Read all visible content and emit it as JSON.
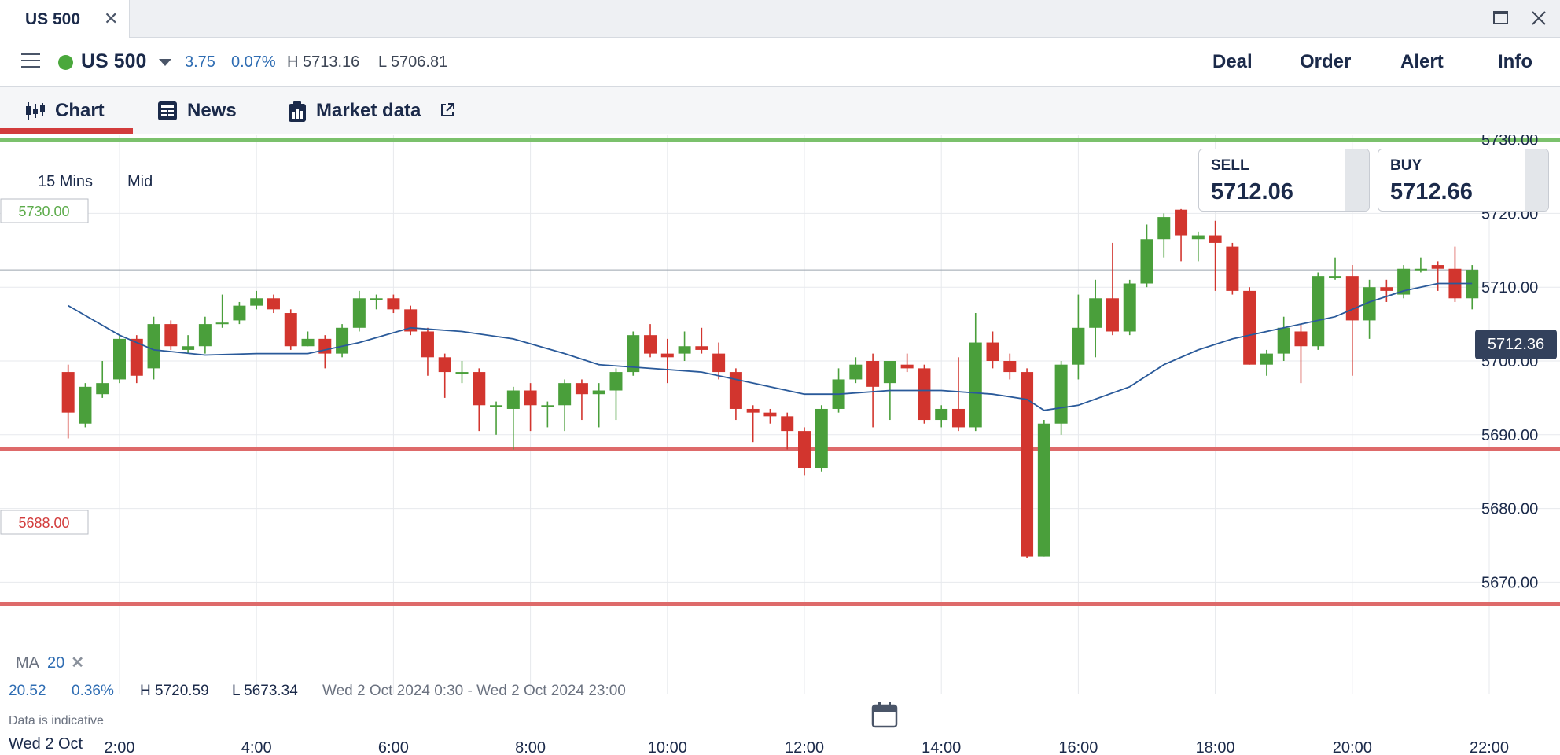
{
  "window": {
    "tab_title": "US 500",
    "close_glyph": "✕",
    "maximize_glyph": "□"
  },
  "header": {
    "instrument": "US 500",
    "status_color": "#4aa83c",
    "change": "3.75",
    "change_pct": "0.07%",
    "high": "H 5713.16",
    "low": "L 5706.81",
    "actions": {
      "deal": "Deal",
      "order": "Order",
      "alert": "Alert",
      "info": "Info"
    }
  },
  "subtabs": {
    "chart": "Chart",
    "news": "News",
    "market_data": "Market data"
  },
  "chart": {
    "interval": "15 Mins",
    "price_type": "Mid",
    "sell_label": "SELL",
    "sell_value": "5712.06",
    "buy_label": "BUY",
    "buy_value": "5712.66",
    "current_price": "5712.36",
    "upper_level": "5730.00",
    "lower_level": "5688.00",
    "bottom_level": "5667.00",
    "ma_label": "MA",
    "ma_period": "20",
    "ma_remove": "✕",
    "stats": {
      "change": "20.52",
      "change_pct": "0.36%",
      "high": "H 5720.59",
      "low": "L 5673.34",
      "range": "Wed 2 Oct 2024 0:30 - Wed 2 Oct 2024 23:00"
    },
    "disclaimer": "Data is indicative",
    "date_label": "Wed 2 Oct",
    "colors": {
      "up": "#4a9f3b",
      "down": "#d2352e",
      "ma_line": "#2a5a9a",
      "upper_level": "#7bc16c",
      "lower_level": "#de6a6a"
    }
  },
  "chart_data": {
    "type": "candlestick",
    "x_axis": {
      "unit": "time",
      "range": [
        "1:15",
        "22:00"
      ],
      "ticks": [
        "2:00",
        "4:00",
        "6:00",
        "8:00",
        "10:00",
        "12:00",
        "14:00",
        "16:00",
        "18:00",
        "20:00",
        "22:00"
      ]
    },
    "y_axis": {
      "range": [
        5664,
        5736
      ],
      "ticks": [
        "5670.00",
        "5680.00",
        "5690.00",
        "5700.00",
        "5710.00",
        "5720.00",
        "5730.00"
      ]
    },
    "grid": true,
    "candles": [
      {
        "t": "1:15",
        "o": 5698.5,
        "h": 5699.5,
        "l": 5689.5,
        "c": 5693.0
      },
      {
        "t": "1:30",
        "o": 5691.5,
        "h": 5697.0,
        "l": 5691.0,
        "c": 5696.5
      },
      {
        "t": "1:45",
        "o": 5695.5,
        "h": 5700.0,
        "l": 5695.0,
        "c": 5697.0
      },
      {
        "t": "2:00",
        "o": 5697.5,
        "h": 5703.5,
        "l": 5697.0,
        "c": 5703.0
      },
      {
        "t": "2:15",
        "o": 5703.0,
        "h": 5703.5,
        "l": 5697.0,
        "c": 5698.0
      },
      {
        "t": "2:30",
        "o": 5699.0,
        "h": 5706.0,
        "l": 5697.5,
        "c": 5705.0
      },
      {
        "t": "2:45",
        "o": 5705.0,
        "h": 5705.5,
        "l": 5701.5,
        "c": 5702.0
      },
      {
        "t": "3:00",
        "o": 5701.5,
        "h": 5703.5,
        "l": 5701.0,
        "c": 5702.0
      },
      {
        "t": "3:15",
        "o": 5702.0,
        "h": 5706.0,
        "l": 5701.0,
        "c": 5705.0
      },
      {
        "t": "3:30",
        "o": 5705.0,
        "h": 5709.0,
        "l": 5704.5,
        "c": 5705.2
      },
      {
        "t": "3:45",
        "o": 5705.5,
        "h": 5708.0,
        "l": 5705.0,
        "c": 5707.5
      },
      {
        "t": "4:00",
        "o": 5707.5,
        "h": 5709.5,
        "l": 5707.0,
        "c": 5708.5
      },
      {
        "t": "4:15",
        "o": 5708.5,
        "h": 5709.0,
        "l": 5706.5,
        "c": 5707.0
      },
      {
        "t": "4:30",
        "o": 5706.5,
        "h": 5707.0,
        "l": 5701.5,
        "c": 5702.0
      },
      {
        "t": "4:45",
        "o": 5702.0,
        "h": 5704.0,
        "l": 5702.0,
        "c": 5703.0
      },
      {
        "t": "5:00",
        "o": 5703.0,
        "h": 5703.5,
        "l": 5699.0,
        "c": 5701.0
      },
      {
        "t": "5:15",
        "o": 5701.0,
        "h": 5705.0,
        "l": 5700.5,
        "c": 5704.5
      },
      {
        "t": "5:30",
        "o": 5704.5,
        "h": 5709.5,
        "l": 5704.0,
        "c": 5708.5
      },
      {
        "t": "5:45",
        "o": 5708.5,
        "h": 5709.0,
        "l": 5707.0,
        "c": 5708.5
      },
      {
        "t": "6:00",
        "o": 5708.5,
        "h": 5709.0,
        "l": 5706.5,
        "c": 5707.0
      },
      {
        "t": "6:15",
        "o": 5707.0,
        "h": 5707.5,
        "l": 5703.5,
        "c": 5704.0
      },
      {
        "t": "6:30",
        "o": 5704.0,
        "h": 5704.5,
        "l": 5698.0,
        "c": 5700.5
      },
      {
        "t": "6:45",
        "o": 5700.5,
        "h": 5701.0,
        "l": 5695.0,
        "c": 5698.5
      },
      {
        "t": "7:00",
        "o": 5698.5,
        "h": 5700.0,
        "l": 5697.0,
        "c": 5698.5
      },
      {
        "t": "7:15",
        "o": 5698.5,
        "h": 5699.0,
        "l": 5690.5,
        "c": 5694.0
      },
      {
        "t": "7:30",
        "o": 5694.0,
        "h": 5694.5,
        "l": 5690.0,
        "c": 5694.0
      },
      {
        "t": "7:45",
        "o": 5693.5,
        "h": 5696.5,
        "l": 5688.0,
        "c": 5696.0
      },
      {
        "t": "8:00",
        "o": 5696.0,
        "h": 5697.0,
        "l": 5690.5,
        "c": 5694.0
      },
      {
        "t": "8:15",
        "o": 5694.0,
        "h": 5694.5,
        "l": 5691.0,
        "c": 5694.0
      },
      {
        "t": "8:30",
        "o": 5694.0,
        "h": 5697.5,
        "l": 5690.5,
        "c": 5697.0
      },
      {
        "t": "8:45",
        "o": 5697.0,
        "h": 5697.5,
        "l": 5692.0,
        "c": 5695.5
      },
      {
        "t": "9:00",
        "o": 5695.5,
        "h": 5697.0,
        "l": 5691.0,
        "c": 5696.0
      },
      {
        "t": "9:15",
        "o": 5696.0,
        "h": 5699.0,
        "l": 5692.0,
        "c": 5698.5
      },
      {
        "t": "9:30",
        "o": 5698.5,
        "h": 5704.0,
        "l": 5698.0,
        "c": 5703.5
      },
      {
        "t": "9:45",
        "o": 5703.5,
        "h": 5705.0,
        "l": 5700.5,
        "c": 5701.0
      },
      {
        "t": "10:00",
        "o": 5701.0,
        "h": 5703.0,
        "l": 5697.0,
        "c": 5700.5
      },
      {
        "t": "10:15",
        "o": 5701.0,
        "h": 5704.0,
        "l": 5700.0,
        "c": 5702.0
      },
      {
        "t": "10:30",
        "o": 5702.0,
        "h": 5704.5,
        "l": 5701.0,
        "c": 5701.5
      },
      {
        "t": "10:45",
        "o": 5701.0,
        "h": 5702.5,
        "l": 5697.5,
        "c": 5698.5
      },
      {
        "t": "11:00",
        "o": 5698.5,
        "h": 5699.0,
        "l": 5692.0,
        "c": 5693.5
      },
      {
        "t": "11:15",
        "o": 5693.5,
        "h": 5694.0,
        "l": 5689.0,
        "c": 5693.0
      },
      {
        "t": "11:30",
        "o": 5693.0,
        "h": 5693.5,
        "l": 5691.5,
        "c": 5692.5
      },
      {
        "t": "11:45",
        "o": 5692.5,
        "h": 5693.0,
        "l": 5688.0,
        "c": 5690.5
      },
      {
        "t": "12:00",
        "o": 5690.5,
        "h": 5691.0,
        "l": 5684.5,
        "c": 5685.5
      },
      {
        "t": "12:15",
        "o": 5685.5,
        "h": 5694.0,
        "l": 5685.0,
        "c": 5693.5
      },
      {
        "t": "12:30",
        "o": 5693.5,
        "h": 5699.0,
        "l": 5693.0,
        "c": 5697.5
      },
      {
        "t": "12:45",
        "o": 5697.5,
        "h": 5700.5,
        "l": 5697.0,
        "c": 5699.5
      },
      {
        "t": "13:00",
        "o": 5700.0,
        "h": 5701.0,
        "l": 5691.0,
        "c": 5696.5
      },
      {
        "t": "13:15",
        "o": 5697.0,
        "h": 5700.0,
        "l": 5692.0,
        "c": 5700.0
      },
      {
        "t": "13:30",
        "o": 5699.5,
        "h": 5701.0,
        "l": 5698.5,
        "c": 5699.0
      },
      {
        "t": "13:45",
        "o": 5699.0,
        "h": 5699.5,
        "l": 5691.5,
        "c": 5692.0
      },
      {
        "t": "14:00",
        "o": 5692.0,
        "h": 5694.0,
        "l": 5691.0,
        "c": 5693.5
      },
      {
        "t": "14:15",
        "o": 5693.5,
        "h": 5700.5,
        "l": 5690.5,
        "c": 5691.0
      },
      {
        "t": "14:30",
        "o": 5691.0,
        "h": 5706.5,
        "l": 5690.5,
        "c": 5702.5
      },
      {
        "t": "14:45",
        "o": 5702.5,
        "h": 5704.0,
        "l": 5699.0,
        "c": 5700.0
      },
      {
        "t": "15:00",
        "o": 5700.0,
        "h": 5701.0,
        "l": 5697.5,
        "c": 5698.5
      },
      {
        "t": "15:15",
        "o": 5698.5,
        "h": 5699.0,
        "l": 5673.34,
        "c": 5673.5
      },
      {
        "t": "15:30",
        "o": 5673.5,
        "h": 5692.0,
        "l": 5673.5,
        "c": 5691.5
      },
      {
        "t": "15:45",
        "o": 5691.5,
        "h": 5700.0,
        "l": 5690.0,
        "c": 5699.5
      },
      {
        "t": "16:00",
        "o": 5699.5,
        "h": 5709.0,
        "l": 5697.5,
        "c": 5704.5
      },
      {
        "t": "16:15",
        "o": 5704.5,
        "h": 5711.0,
        "l": 5700.5,
        "c": 5708.5
      },
      {
        "t": "16:30",
        "o": 5708.5,
        "h": 5716.0,
        "l": 5703.5,
        "c": 5704.0
      },
      {
        "t": "16:45",
        "o": 5704.0,
        "h": 5711.0,
        "l": 5703.5,
        "c": 5710.5
      },
      {
        "t": "17:00",
        "o": 5710.5,
        "h": 5718.5,
        "l": 5710.0,
        "c": 5716.5
      },
      {
        "t": "17:15",
        "o": 5716.5,
        "h": 5720.0,
        "l": 5714.0,
        "c": 5719.5
      },
      {
        "t": "17:30",
        "o": 5720.5,
        "h": 5720.59,
        "l": 5713.5,
        "c": 5717.0
      },
      {
        "t": "17:45",
        "o": 5716.5,
        "h": 5717.5,
        "l": 5713.5,
        "c": 5717.0
      },
      {
        "t": "18:00",
        "o": 5717.0,
        "h": 5719.0,
        "l": 5709.5,
        "c": 5716.0
      },
      {
        "t": "18:15",
        "o": 5715.5,
        "h": 5716.0,
        "l": 5709.0,
        "c": 5709.5
      },
      {
        "t": "18:30",
        "o": 5709.5,
        "h": 5710.0,
        "l": 5699.5,
        "c": 5699.5
      },
      {
        "t": "18:45",
        "o": 5699.5,
        "h": 5701.5,
        "l": 5698.0,
        "c": 5701.0
      },
      {
        "t": "19:00",
        "o": 5701.0,
        "h": 5706.0,
        "l": 5700.0,
        "c": 5704.5
      },
      {
        "t": "19:15",
        "o": 5704.0,
        "h": 5705.0,
        "l": 5697.0,
        "c": 5702.0
      },
      {
        "t": "19:30",
        "o": 5702.0,
        "h": 5712.0,
        "l": 5701.5,
        "c": 5711.5
      },
      {
        "t": "19:45",
        "o": 5711.5,
        "h": 5714.0,
        "l": 5711.0,
        "c": 5711.5
      },
      {
        "t": "20:00",
        "o": 5711.5,
        "h": 5713.0,
        "l": 5698.0,
        "c": 5705.5
      },
      {
        "t": "20:15",
        "o": 5705.5,
        "h": 5711.0,
        "l": 5703.0,
        "c": 5710.0
      },
      {
        "t": "20:30",
        "o": 5710.0,
        "h": 5711.0,
        "l": 5708.0,
        "c": 5709.5
      },
      {
        "t": "20:45",
        "o": 5709.0,
        "h": 5713.0,
        "l": 5708.5,
        "c": 5712.5
      },
      {
        "t": "21:00",
        "o": 5712.5,
        "h": 5714.0,
        "l": 5712.0,
        "c": 5712.5
      },
      {
        "t": "21:15",
        "o": 5713.0,
        "h": 5713.5,
        "l": 5709.5,
        "c": 5712.5
      },
      {
        "t": "21:30",
        "o": 5712.5,
        "h": 5715.5,
        "l": 5708.0,
        "c": 5708.5
      },
      {
        "t": "21:45",
        "o": 5708.5,
        "h": 5713.0,
        "l": 5707.0,
        "c": 5712.36
      }
    ],
    "ma": {
      "period": 20,
      "values": [
        {
          "t": "1:15",
          "v": 5707.5
        },
        {
          "t": "2:00",
          "v": 5703.5
        },
        {
          "t": "2:30",
          "v": 5701.5
        },
        {
          "t": "3:15",
          "v": 5700.8
        },
        {
          "t": "4:00",
          "v": 5701.0
        },
        {
          "t": "4:45",
          "v": 5701.0
        },
        {
          "t": "5:30",
          "v": 5702.5
        },
        {
          "t": "6:15",
          "v": 5704.5
        },
        {
          "t": "7:00",
          "v": 5704.0
        },
        {
          "t": "7:45",
          "v": 5703.0
        },
        {
          "t": "8:30",
          "v": 5701.0
        },
        {
          "t": "9:00",
          "v": 5699.5
        },
        {
          "t": "9:45",
          "v": 5699.0
        },
        {
          "t": "10:30",
          "v": 5698.5
        },
        {
          "t": "11:15",
          "v": 5697.0
        },
        {
          "t": "12:00",
          "v": 5695.5
        },
        {
          "t": "12:30",
          "v": 5695.5
        },
        {
          "t": "13:15",
          "v": 5696.0
        },
        {
          "t": "14:00",
          "v": 5696.0
        },
        {
          "t": "14:45",
          "v": 5695.5
        },
        {
          "t": "15:15",
          "v": 5694.8
        },
        {
          "t": "15:30",
          "v": 5693.3
        },
        {
          "t": "16:00",
          "v": 5694.0
        },
        {
          "t": "16:45",
          "v": 5696.5
        },
        {
          "t": "17:15",
          "v": 5699.5
        },
        {
          "t": "17:45",
          "v": 5701.5
        },
        {
          "t": "18:15",
          "v": 5703.0
        },
        {
          "t": "18:45",
          "v": 5704.0
        },
        {
          "t": "19:15",
          "v": 5705.0
        },
        {
          "t": "19:45",
          "v": 5706.0
        },
        {
          "t": "20:15",
          "v": 5708.0
        },
        {
          "t": "20:45",
          "v": 5709.5
        },
        {
          "t": "21:15",
          "v": 5710.5
        },
        {
          "t": "21:45",
          "v": 5710.5
        }
      ]
    },
    "levels": [
      {
        "name": "upper",
        "value": 5730.0
      },
      {
        "name": "lower",
        "value": 5688.0
      },
      {
        "name": "bottom",
        "value": 5667.0
      }
    ],
    "current_price": 5712.36
  }
}
